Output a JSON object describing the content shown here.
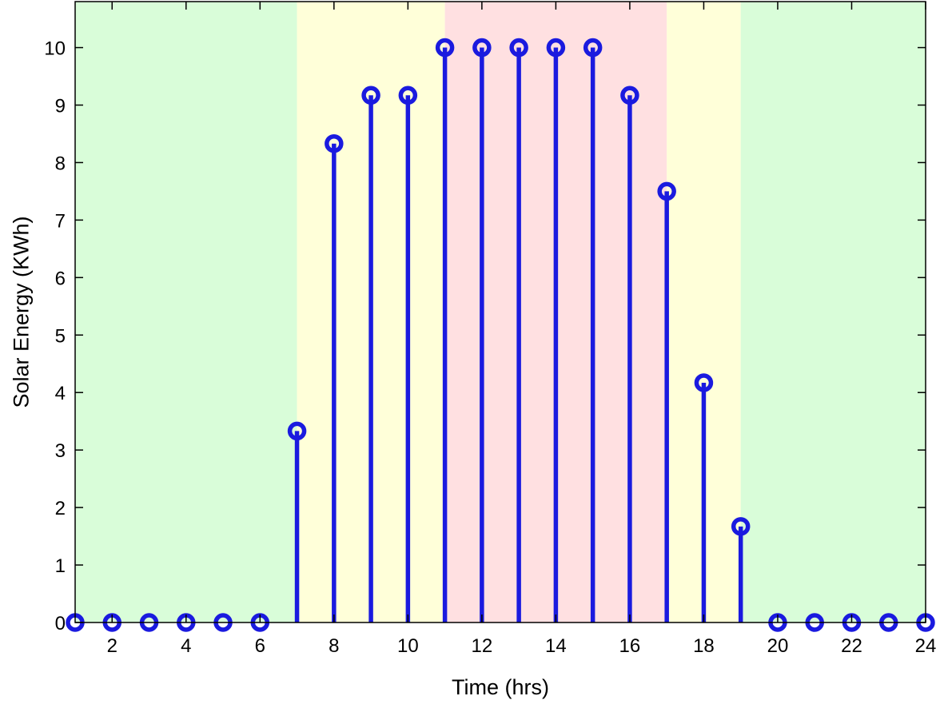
{
  "chart_data": {
    "type": "stem",
    "title": "",
    "xlabel": "Time (hrs)",
    "ylabel": "Solar Energy (KWh)",
    "xlim": [
      1,
      24
    ],
    "ylim": [
      0,
      10.8
    ],
    "x_ticks": [
      2,
      4,
      6,
      8,
      10,
      12,
      14,
      16,
      18,
      20,
      22,
      24
    ],
    "y_ticks": [
      0,
      1,
      2,
      3,
      4,
      5,
      6,
      7,
      8,
      9,
      10
    ],
    "x": [
      1,
      2,
      3,
      4,
      5,
      6,
      7,
      8,
      9,
      10,
      11,
      12,
      13,
      14,
      15,
      16,
      17,
      18,
      19,
      20,
      21,
      22,
      23,
      24
    ],
    "values": [
      0,
      0,
      0,
      0,
      0,
      0,
      3.33,
      8.33,
      9.17,
      9.17,
      10,
      10,
      10,
      10,
      10,
      9.17,
      7.5,
      4.17,
      1.67,
      0,
      0,
      0,
      0,
      0
    ],
    "series_color": "#1a1adf",
    "grid": false,
    "background_bands": [
      {
        "from": 1,
        "to": 7,
        "color": "#d9fdd9"
      },
      {
        "from": 7,
        "to": 11,
        "color": "#ffffd9"
      },
      {
        "from": 11,
        "to": 17,
        "color": "#ffe0e1"
      },
      {
        "from": 17,
        "to": 19,
        "color": "#ffffd9"
      },
      {
        "from": 19,
        "to": 24,
        "color": "#d9fdd9"
      }
    ]
  }
}
